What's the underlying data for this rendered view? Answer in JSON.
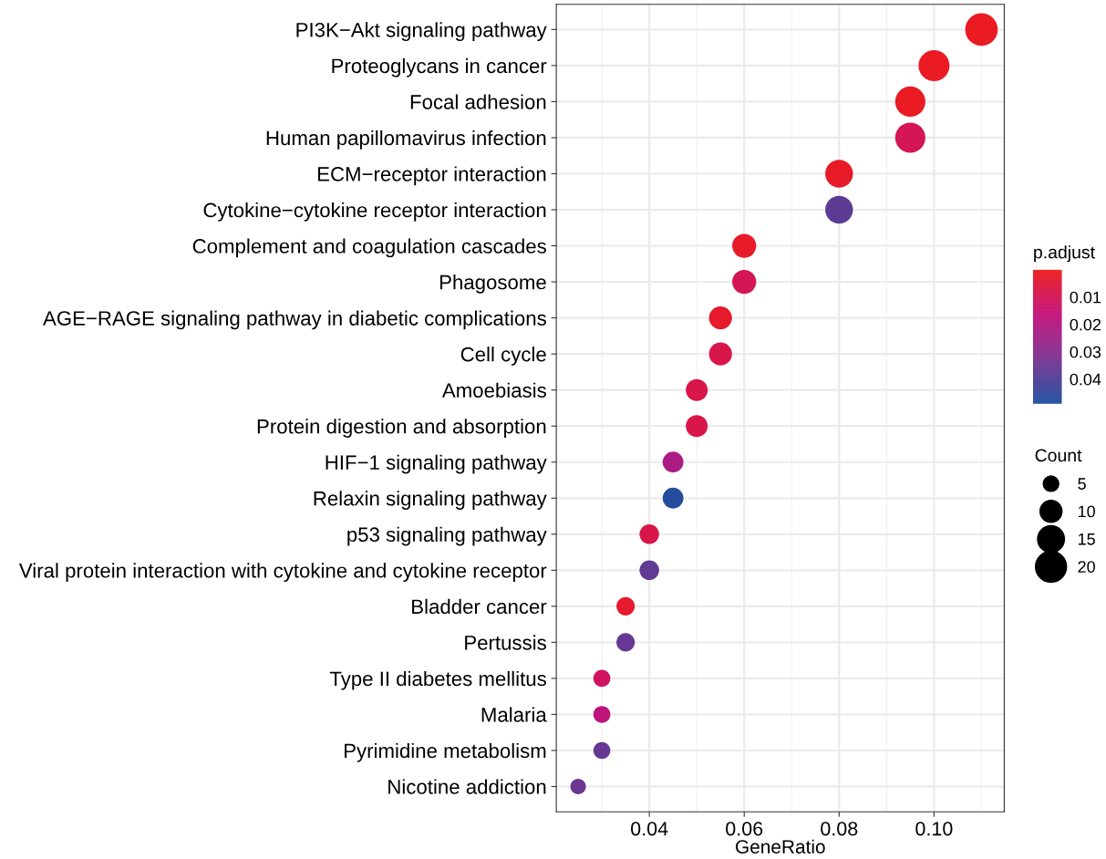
{
  "chart_data": {
    "type": "bubble",
    "orientation": "horizontal",
    "xlabel": "GeneRatio",
    "clabel": "p.adjust",
    "legend_title": "Count",
    "categories": [
      "PI3K−Akt signaling pathway",
      "Proteoglycans in cancer",
      "Focal adhesion",
      "Human papillomavirus infection",
      "ECM−receptor interaction",
      "Cytokine−cytokine receptor interaction",
      "Complement and coagulation cascades",
      "Phagosome",
      "AGE−RAGE signaling pathway in diabetic complications",
      "Cell cycle",
      "Amoebiasis",
      "Protein digestion and absorption",
      "HIF−1 signaling pathway",
      "Relaxin signaling pathway",
      "p53 signaling pathway",
      "Viral protein interaction with cytokine and cytokine receptor",
      "Bladder cancer",
      "Pertussis",
      "Type II diabetes mellitus",
      "Malaria",
      "Pyrimidine metabolism",
      "Nicotine addiction"
    ],
    "values": [
      0.11,
      0.1,
      0.095,
      0.095,
      0.08,
      0.08,
      0.06,
      0.06,
      0.055,
      0.055,
      0.05,
      0.05,
      0.045,
      0.045,
      0.04,
      0.04,
      0.035,
      0.035,
      0.03,
      0.03,
      0.03,
      0.025
    ],
    "sizes": [
      22,
      20,
      19,
      19,
      16,
      16,
      12,
      12,
      11,
      11,
      10,
      10,
      9,
      9,
      8,
      8,
      7,
      7,
      6,
      6,
      6,
      5
    ],
    "cvalues": [
      0.001,
      0.001,
      0.001,
      0.01,
      0.002,
      0.038,
      0.002,
      0.01,
      0.003,
      0.008,
      0.008,
      0.008,
      0.022,
      0.048,
      0.008,
      0.037,
      0.003,
      0.036,
      0.012,
      0.018,
      0.036,
      0.035
    ],
    "size_legend": [
      5,
      10,
      15,
      20
    ],
    "clim": [
      0,
      0.049
    ],
    "cticks": [
      0.01,
      0.02,
      0.03,
      0.04
    ],
    "xlim": [
      0.0204,
      0.1148
    ],
    "xticks": [
      0.04,
      0.06,
      0.08,
      {
        "value": 0.1,
        "label": "0.10"
      }
    ],
    "grid": true,
    "marker": "circle"
  }
}
